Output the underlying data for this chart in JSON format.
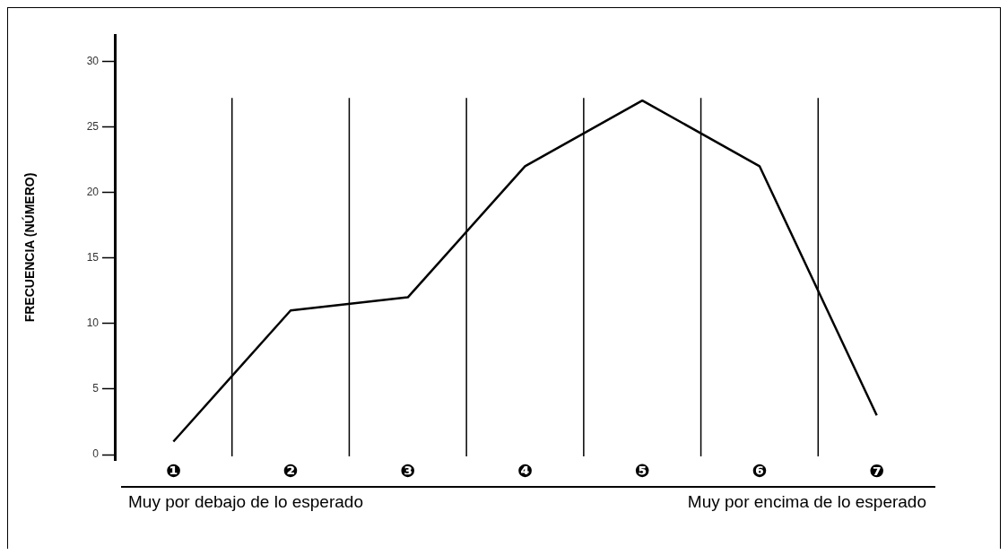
{
  "chart_data": {
    "type": "line",
    "ylabel": "FRECUENCIA (NÚMERO)",
    "categories": [
      "❶",
      "❷",
      "❸",
      "❹",
      "❺",
      "❻",
      "❼"
    ],
    "series": [
      {
        "color": "#000000",
        "values": [
          1,
          11,
          12,
          22,
          27,
          22,
          3
        ]
      }
    ],
    "ylim": [
      -0.4,
      32
    ],
    "yticks": [
      0,
      5,
      10,
      15,
      20,
      25,
      30
    ],
    "grid": "x",
    "legend": false,
    "marker": "none",
    "line_style": "solid",
    "annotations": [
      "Muy por debajo de lo esperado",
      "Muy por encima de lo esperado"
    ]
  }
}
